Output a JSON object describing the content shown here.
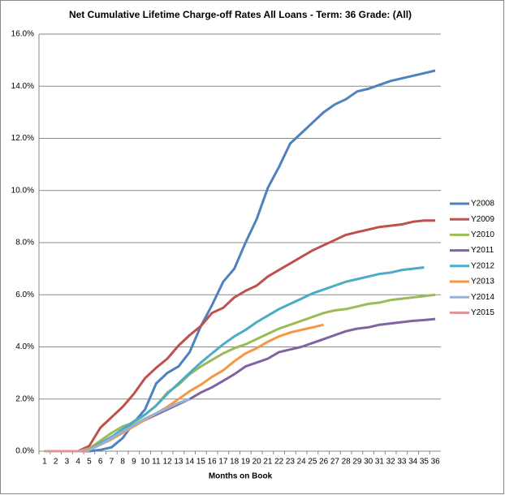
{
  "chart_data": {
    "type": "line",
    "title": "Net Cumulative Lifetime Charge-off Rates All Loans - Term: 36 Grade: (All)",
    "x_label": "Months on Book",
    "categories": [
      "1",
      "2",
      "3",
      "4",
      "5",
      "6",
      "7",
      "8",
      "9",
      "10",
      "11",
      "12",
      "13",
      "14",
      "15",
      "16",
      "17",
      "18",
      "19",
      "20",
      "21",
      "22",
      "23",
      "24",
      "25",
      "26",
      "27",
      "28",
      "29",
      "30",
      "31",
      "32",
      "33",
      "34",
      "35",
      "36"
    ],
    "ylim": [
      0,
      16
    ],
    "yticks": [
      {
        "value": 0,
        "label": "0.0%"
      },
      {
        "value": 2,
        "label": "2.0%"
      },
      {
        "value": 4,
        "label": "4.0%"
      },
      {
        "value": 6,
        "label": "6.0%"
      },
      {
        "value": 8,
        "label": "8.0%"
      },
      {
        "value": 10,
        "label": "10.0%"
      },
      {
        "value": 12,
        "label": "12.0%"
      },
      {
        "value": 14,
        "label": "14.0%"
      },
      {
        "value": 16,
        "label": "16.0%"
      }
    ],
    "grid": true,
    "legend": "right",
    "series": [
      {
        "name": "Y2008",
        "color": "#4f81bd",
        "values": [
          0,
          0,
          0,
          0,
          0,
          0.05,
          0.15,
          0.5,
          1.1,
          1.6,
          2.6,
          3.0,
          3.25,
          3.8,
          4.8,
          5.6,
          6.5,
          7.0,
          8.0,
          8.9,
          10.1,
          10.9,
          11.8,
          12.2,
          12.6,
          13.0,
          13.3,
          13.5,
          13.8,
          13.9,
          14.05,
          14.2,
          14.3,
          14.4,
          14.5,
          14.6
        ]
      },
      {
        "name": "Y2009",
        "color": "#c0504d",
        "values": [
          0,
          0,
          0,
          0,
          0.2,
          0.9,
          1.3,
          1.7,
          2.2,
          2.8,
          3.2,
          3.55,
          4.05,
          4.45,
          4.8,
          5.3,
          5.5,
          5.9,
          6.15,
          6.35,
          6.7,
          6.95,
          7.2,
          7.45,
          7.7,
          7.9,
          8.1,
          8.3,
          8.4,
          8.5,
          8.6,
          8.65,
          8.7,
          8.8,
          8.85,
          8.85
        ]
      },
      {
        "name": "Y2010",
        "color": "#9bbb59",
        "values": [
          0,
          0,
          0,
          0,
          0.1,
          0.4,
          0.7,
          0.95,
          1.1,
          1.4,
          1.75,
          2.25,
          2.55,
          2.95,
          3.25,
          3.5,
          3.75,
          3.95,
          4.1,
          4.3,
          4.5,
          4.7,
          4.85,
          5.0,
          5.15,
          5.3,
          5.4,
          5.45,
          5.55,
          5.65,
          5.7,
          5.8,
          5.85,
          5.9,
          5.95,
          6.0
        ]
      },
      {
        "name": "Y2011",
        "color": "#8064a2",
        "values": [
          0,
          0,
          0,
          0,
          0.05,
          0.3,
          0.55,
          0.8,
          1.0,
          1.2,
          1.4,
          1.6,
          1.8,
          2.0,
          2.25,
          2.45,
          2.7,
          2.95,
          3.25,
          3.4,
          3.55,
          3.8,
          3.9,
          4.0,
          4.15,
          4.3,
          4.45,
          4.6,
          4.7,
          4.75,
          4.85,
          4.9,
          4.95,
          5.0,
          5.03,
          5.07
        ]
      },
      {
        "name": "Y2012",
        "color": "#4bacc6",
        "values": [
          0,
          0,
          0,
          0,
          0.05,
          0.3,
          0.55,
          0.85,
          1.15,
          1.4,
          1.75,
          2.2,
          2.6,
          3.0,
          3.4,
          3.75,
          4.1,
          4.4,
          4.65,
          4.95,
          5.2,
          5.45,
          5.65,
          5.85,
          6.05,
          6.2,
          6.35,
          6.5,
          6.6,
          6.7,
          6.8,
          6.85,
          6.95,
          7.0,
          7.05,
          null
        ]
      },
      {
        "name": "Y2013",
        "color": "#f79646",
        "values": [
          0,
          0,
          0,
          0,
          0.05,
          0.25,
          0.45,
          0.7,
          0.95,
          1.2,
          1.45,
          1.7,
          2.0,
          2.3,
          2.55,
          2.85,
          3.1,
          3.45,
          3.75,
          3.95,
          4.2,
          4.4,
          4.55,
          4.65,
          4.75,
          4.85,
          null,
          null,
          null,
          null,
          null,
          null,
          null,
          null,
          null,
          null
        ]
      },
      {
        "name": "Y2014",
        "color": "#95b3d7",
        "values": [
          0,
          0,
          0,
          0,
          0.05,
          0.25,
          0.5,
          0.75,
          1.0,
          1.25,
          1.45,
          1.65,
          1.85,
          2.0,
          null,
          null,
          null,
          null,
          null,
          null,
          null,
          null,
          null,
          null,
          null,
          null,
          null,
          null,
          null,
          null,
          null,
          null,
          null,
          null,
          null,
          null
        ]
      },
      {
        "name": "Y2015",
        "color": "#d99694",
        "values": [
          0,
          0,
          0,
          0,
          0.02,
          null,
          null,
          null,
          null,
          null,
          null,
          null,
          null,
          null,
          null,
          null,
          null,
          null,
          null,
          null,
          null,
          null,
          null,
          null,
          null,
          null,
          null,
          null,
          null,
          null,
          null,
          null,
          null,
          null,
          null,
          null
        ]
      }
    ]
  }
}
